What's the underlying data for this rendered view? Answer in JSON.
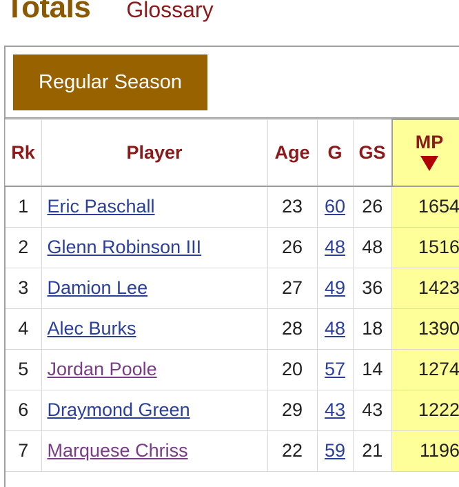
{
  "header": {
    "title": "Totals",
    "glossary_label": "Glossary"
  },
  "filter": {
    "season_label": "Regular Season"
  },
  "table": {
    "columns": {
      "rk": "Rk",
      "player": "Player",
      "age": "Age",
      "g": "G",
      "gs": "GS",
      "mp": "MP"
    },
    "sorted_column": "MP",
    "sort_direction": "descending",
    "rows": [
      {
        "rk": "1",
        "player": "Eric Paschall",
        "age": "23",
        "g": "60",
        "gs": "26",
        "mp": "1654",
        "visited": false
      },
      {
        "rk": "2",
        "player": "Glenn Robinson III",
        "age": "26",
        "g": "48",
        "gs": "48",
        "mp": "1516",
        "visited": false
      },
      {
        "rk": "3",
        "player": "Damion Lee",
        "age": "27",
        "g": "49",
        "gs": "36",
        "mp": "1423",
        "visited": false
      },
      {
        "rk": "4",
        "player": "Alec Burks",
        "age": "28",
        "g": "48",
        "gs": "18",
        "mp": "1390",
        "visited": false
      },
      {
        "rk": "5",
        "player": "Jordan Poole",
        "age": "20",
        "g": "57",
        "gs": "14",
        "mp": "1274",
        "visited": true
      },
      {
        "rk": "6",
        "player": "Draymond Green",
        "age": "29",
        "g": "43",
        "gs": "43",
        "mp": "1222",
        "visited": false
      },
      {
        "rk": "7",
        "player": "Marquese Chriss",
        "age": "22",
        "g": "59",
        "gs": "21",
        "mp": "1196",
        "visited": true
      }
    ]
  },
  "colors": {
    "title": "#8b5a00",
    "link": "#2a3f9c",
    "visited_link": "#7a3b87",
    "header_text": "#8b1a1a",
    "sorted_column_bg": "#ffff99",
    "button_bg": "#996200",
    "sort_arrow": "#b00000"
  }
}
